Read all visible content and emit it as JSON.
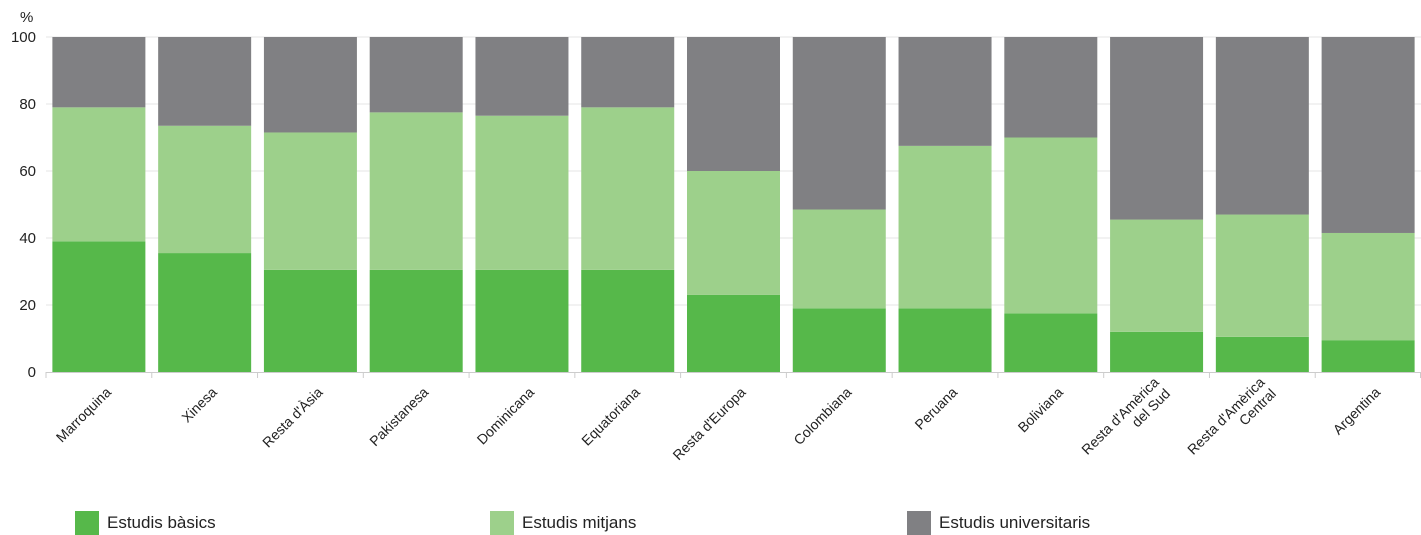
{
  "chart_data": {
    "type": "bar",
    "stacked": true,
    "unit_label": "%",
    "ylim": [
      0,
      100
    ],
    "yticks": [
      "0",
      "20",
      "40",
      "60",
      "80",
      "100"
    ],
    "grid": true,
    "legend_position": "bottom",
    "categories": [
      [
        "Marroquina"
      ],
      [
        "Xinesa"
      ],
      [
        "Resta d'Àsia"
      ],
      [
        "Pakistanesa"
      ],
      [
        "Dominicana"
      ],
      [
        "Equatoriana"
      ],
      [
        "Resta d'Europa"
      ],
      [
        "Colombiana"
      ],
      [
        "Peruana"
      ],
      [
        "Boliviana"
      ],
      [
        "Resta d'Amèrica",
        "del Sud"
      ],
      [
        "Resta d'Amèrica",
        "Central"
      ],
      [
        "Argentina"
      ]
    ],
    "series": [
      {
        "name": "Estudis bàsics",
        "color": "#56b84a",
        "values": [
          39,
          35.5,
          30.5,
          30.5,
          30.5,
          30.5,
          23,
          19,
          19,
          17.5,
          12,
          10.5,
          9.5
        ]
      },
      {
        "name": "Estudis mitjans",
        "color": "#9dd08b",
        "values": [
          40,
          38,
          41,
          47,
          46,
          48.5,
          37,
          29.5,
          48.5,
          52.5,
          33.5,
          36.5,
          32
        ]
      },
      {
        "name": "Estudis universitaris",
        "color": "#808083",
        "values": [
          21,
          26.5,
          28.5,
          22.5,
          23.5,
          21,
          40,
          51.5,
          32.5,
          30,
          54.5,
          53,
          58.5
        ]
      }
    ]
  }
}
